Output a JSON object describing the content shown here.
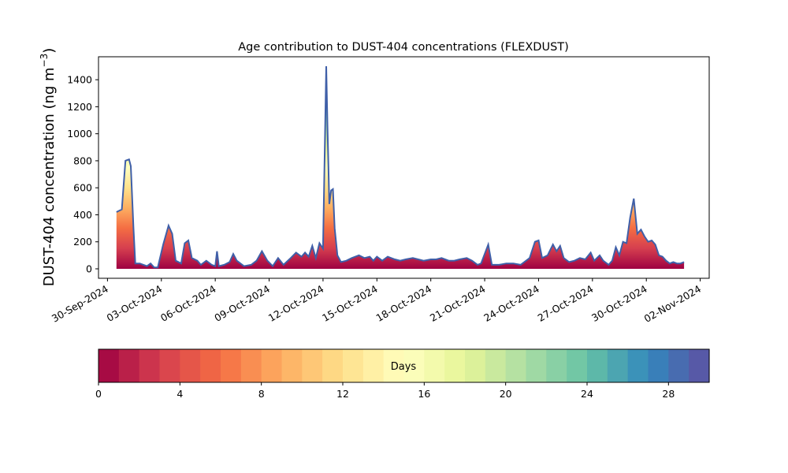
{
  "chart_data": {
    "type": "area",
    "title": "Age contribution to DUST-404 concentrations (FLEXDUST)",
    "ylabel_prefix": "DUST-404 concentration (ng m",
    "ylabel_sup": "−3",
    "ylabel_suffix": ")",
    "y_ticks": [
      0,
      200,
      400,
      600,
      800,
      1000,
      1200,
      1400
    ],
    "x_ticks": [
      "30-Sep-2024",
      "03-Oct-2024",
      "06-Oct-2024",
      "09-Oct-2024",
      "12-Oct-2024",
      "15-Oct-2024",
      "18-Oct-2024",
      "21-Oct-2024",
      "24-Oct-2024",
      "27-Oct-2024",
      "30-Oct-2024",
      "02-Nov-2024"
    ],
    "x_range_days": [
      -0.5,
      33.5
    ],
    "ylim": [
      -70,
      1570
    ],
    "colorbar": {
      "label": "Days",
      "ticks": [
        0,
        4,
        8,
        12,
        16,
        20,
        24,
        28
      ],
      "range": [
        0,
        30
      ],
      "colormap": "Spectral",
      "colors": [
        "#9e0142",
        "#d53e4f",
        "#f46d43",
        "#fdae61",
        "#fee08b",
        "#ffffbf",
        "#e6f598",
        "#abdda4",
        "#66c2a5",
        "#3288bd",
        "#5e4fa2"
      ]
    },
    "total_series_color": "#3f5fa8",
    "total_series_day_offset_from_30_sep": [
      [
        0.5,
        420
      ],
      [
        0.8,
        440
      ],
      [
        1.0,
        800
      ],
      [
        1.2,
        810
      ],
      [
        1.3,
        760
      ],
      [
        1.45,
        300
      ],
      [
        1.55,
        40
      ],
      [
        1.8,
        40
      ],
      [
        2.0,
        30
      ],
      [
        2.2,
        20
      ],
      [
        2.4,
        40
      ],
      [
        2.6,
        10
      ],
      [
        2.8,
        10
      ],
      [
        3.1,
        180
      ],
      [
        3.4,
        320
      ],
      [
        3.6,
        260
      ],
      [
        3.8,
        60
      ],
      [
        4.1,
        40
      ],
      [
        4.3,
        190
      ],
      [
        4.5,
        210
      ],
      [
        4.7,
        80
      ],
      [
        5.0,
        60
      ],
      [
        5.2,
        30
      ],
      [
        5.5,
        60
      ],
      [
        5.8,
        30
      ],
      [
        6.0,
        20
      ],
      [
        6.1,
        130
      ],
      [
        6.2,
        20
      ],
      [
        6.5,
        30
      ],
      [
        6.8,
        50
      ],
      [
        7.0,
        110
      ],
      [
        7.2,
        60
      ],
      [
        7.6,
        20
      ],
      [
        8.0,
        30
      ],
      [
        8.3,
        60
      ],
      [
        8.6,
        130
      ],
      [
        8.9,
        60
      ],
      [
        9.2,
        20
      ],
      [
        9.5,
        80
      ],
      [
        9.8,
        30
      ],
      [
        10.2,
        80
      ],
      [
        10.5,
        120
      ],
      [
        10.8,
        90
      ],
      [
        11.0,
        120
      ],
      [
        11.2,
        90
      ],
      [
        11.4,
        170
      ],
      [
        11.6,
        80
      ],
      [
        11.8,
        190
      ],
      [
        12.0,
        150
      ],
      [
        12.1,
        900
      ],
      [
        12.18,
        1500
      ],
      [
        12.25,
        1050
      ],
      [
        12.35,
        480
      ],
      [
        12.45,
        580
      ],
      [
        12.55,
        590
      ],
      [
        12.65,
        300
      ],
      [
        12.8,
        100
      ],
      [
        13.0,
        50
      ],
      [
        13.3,
        60
      ],
      [
        13.6,
        80
      ],
      [
        14.0,
        100
      ],
      [
        14.3,
        80
      ],
      [
        14.6,
        90
      ],
      [
        14.8,
        60
      ],
      [
        15.0,
        90
      ],
      [
        15.3,
        60
      ],
      [
        15.6,
        90
      ],
      [
        16.0,
        70
      ],
      [
        16.3,
        60
      ],
      [
        16.6,
        70
      ],
      [
        17.0,
        80
      ],
      [
        17.3,
        70
      ],
      [
        17.6,
        60
      ],
      [
        18.0,
        70
      ],
      [
        18.3,
        70
      ],
      [
        18.6,
        80
      ],
      [
        19.0,
        60
      ],
      [
        19.3,
        60
      ],
      [
        19.6,
        70
      ],
      [
        20.0,
        80
      ],
      [
        20.3,
        60
      ],
      [
        20.6,
        30
      ],
      [
        20.8,
        40
      ],
      [
        21.2,
        180
      ],
      [
        21.4,
        30
      ],
      [
        21.8,
        30
      ],
      [
        22.2,
        40
      ],
      [
        22.6,
        40
      ],
      [
        23.0,
        30
      ],
      [
        23.5,
        80
      ],
      [
        23.8,
        200
      ],
      [
        24.0,
        210
      ],
      [
        24.2,
        80
      ],
      [
        24.5,
        100
      ],
      [
        24.8,
        180
      ],
      [
        25.0,
        130
      ],
      [
        25.2,
        170
      ],
      [
        25.4,
        80
      ],
      [
        25.7,
        50
      ],
      [
        26.0,
        60
      ],
      [
        26.3,
        80
      ],
      [
        26.6,
        70
      ],
      [
        26.9,
        120
      ],
      [
        27.1,
        60
      ],
      [
        27.4,
        100
      ],
      [
        27.6,
        60
      ],
      [
        27.9,
        30
      ],
      [
        28.1,
        60
      ],
      [
        28.3,
        160
      ],
      [
        28.5,
        100
      ],
      [
        28.7,
        200
      ],
      [
        28.9,
        190
      ],
      [
        29.1,
        380
      ],
      [
        29.3,
        520
      ],
      [
        29.5,
        260
      ],
      [
        29.7,
        290
      ],
      [
        29.9,
        240
      ],
      [
        30.1,
        200
      ],
      [
        30.3,
        210
      ],
      [
        30.5,
        180
      ],
      [
        30.7,
        100
      ],
      [
        30.9,
        90
      ],
      [
        31.1,
        60
      ],
      [
        31.3,
        40
      ],
      [
        31.5,
        50
      ],
      [
        31.7,
        40
      ],
      [
        31.9,
        40
      ],
      [
        32.1,
        50
      ]
    ]
  }
}
